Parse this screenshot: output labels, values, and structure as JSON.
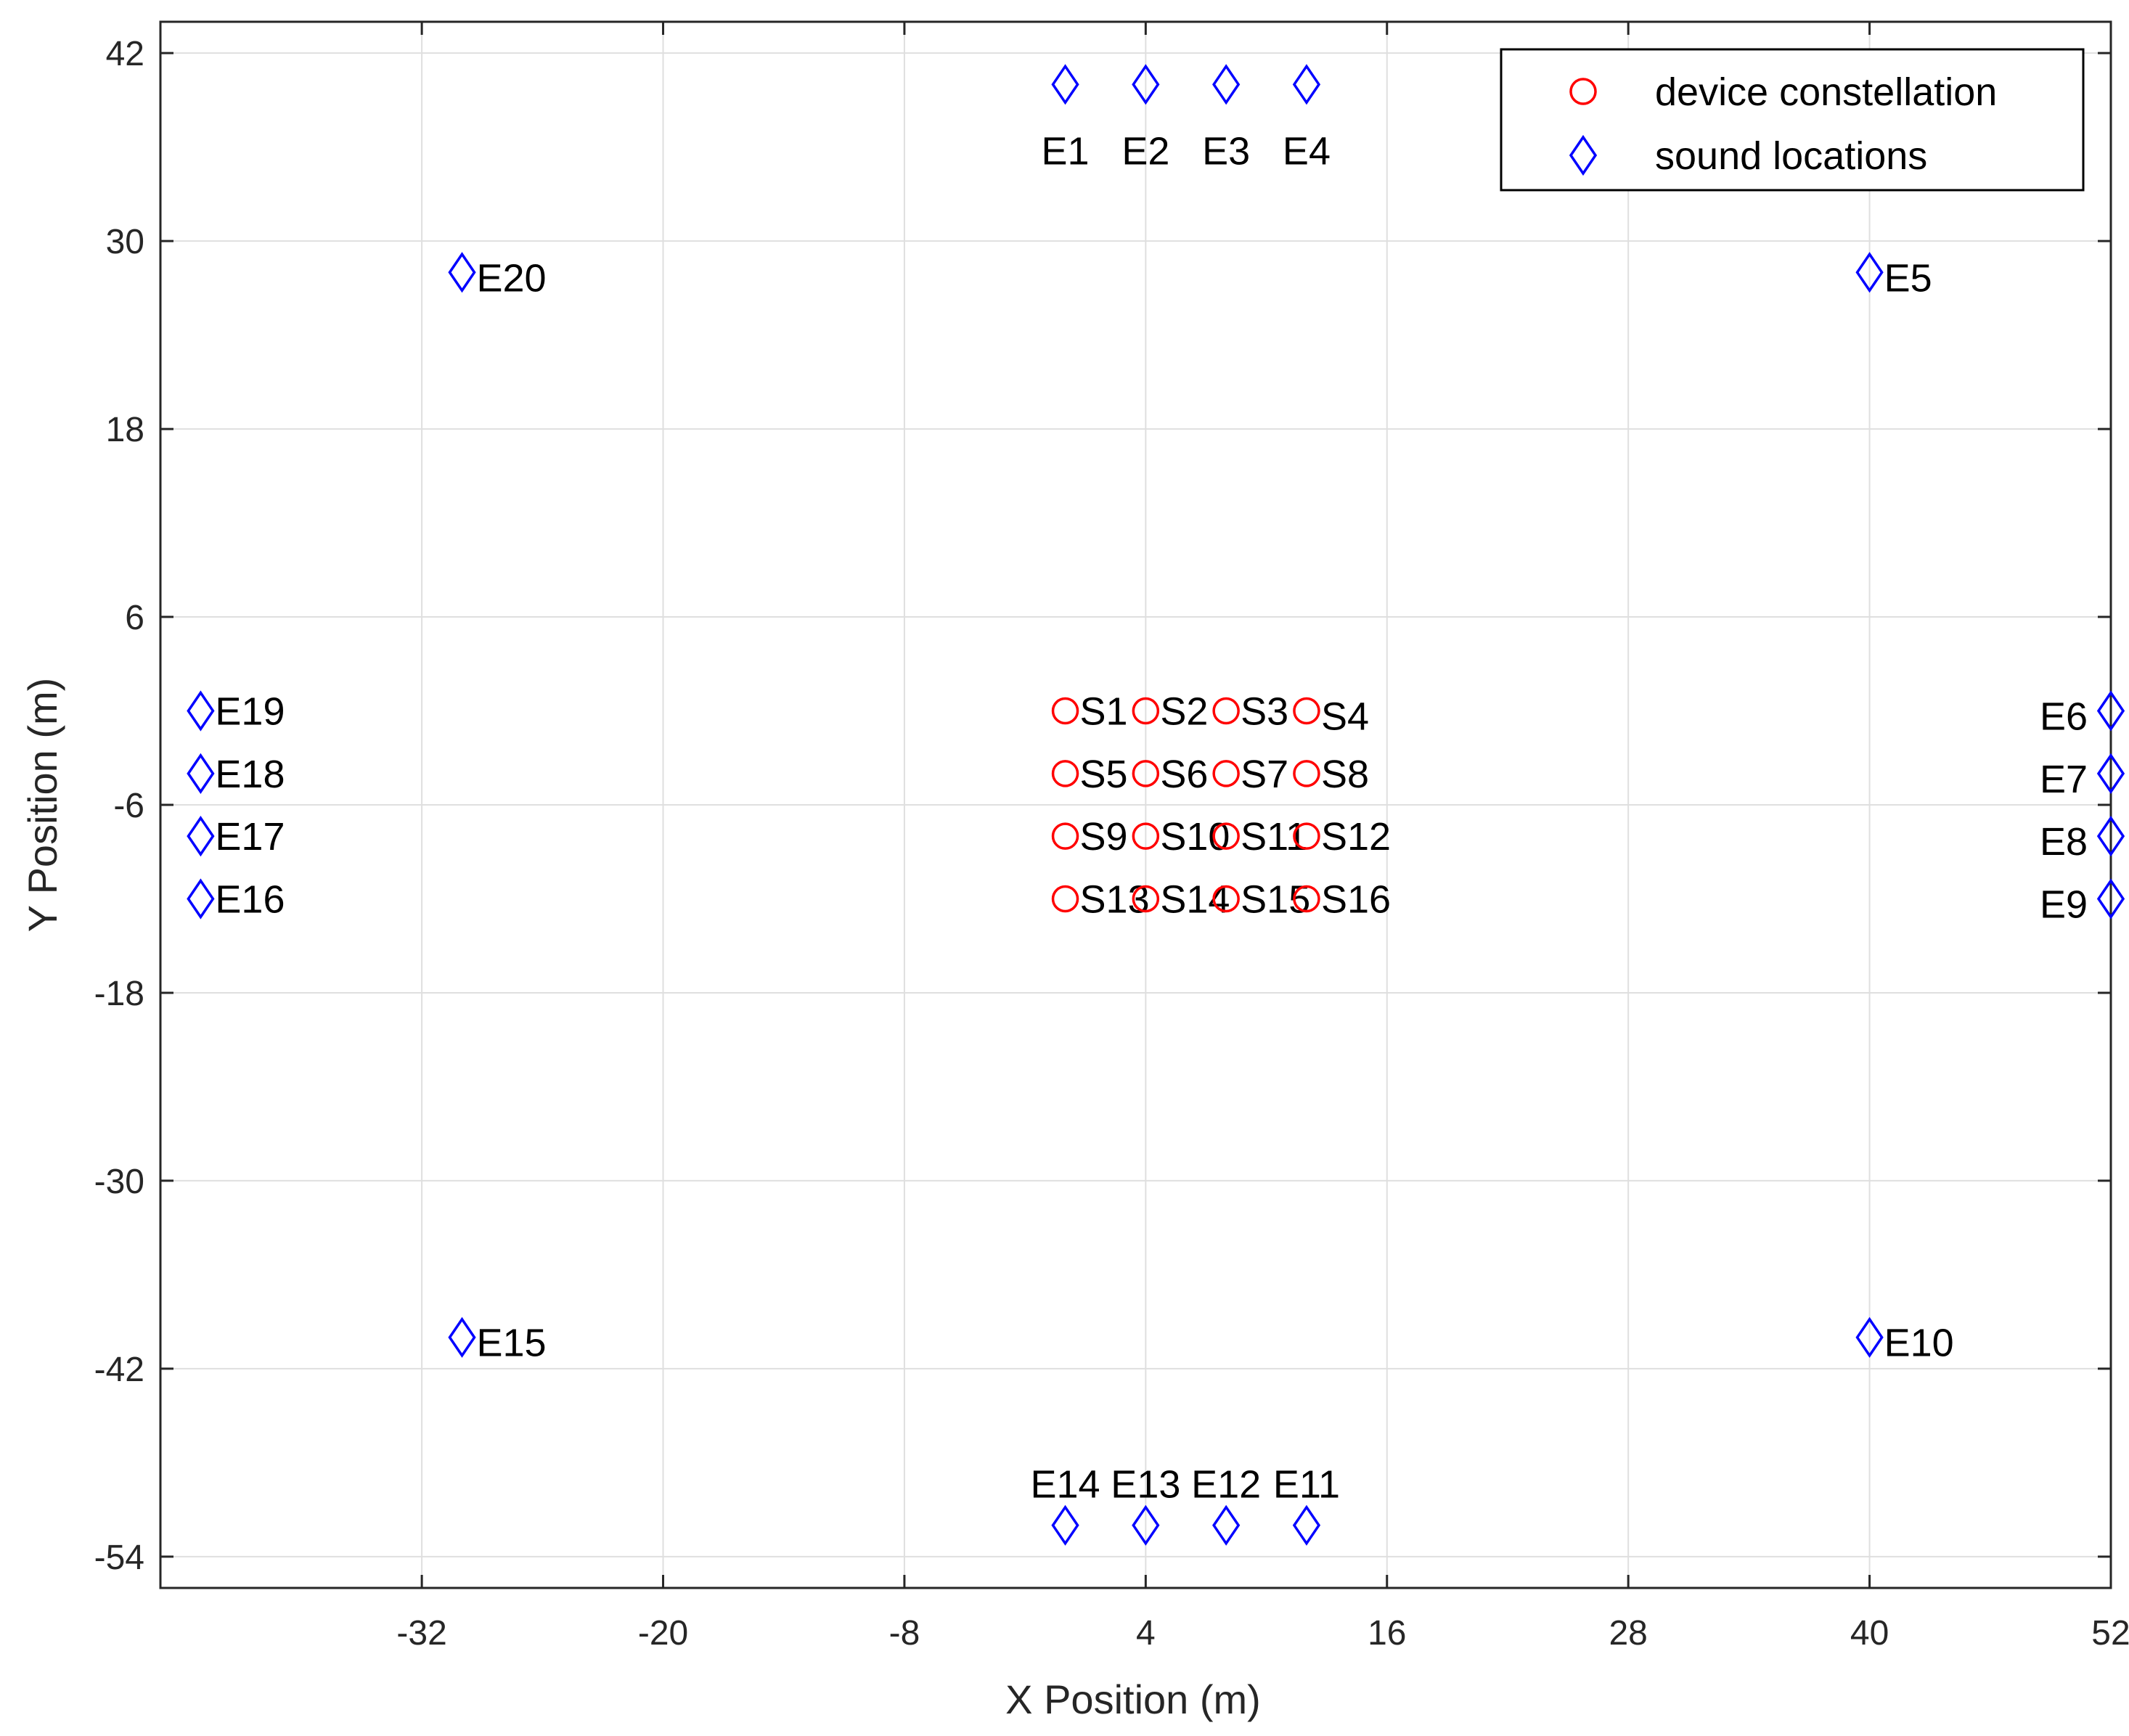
{
  "chart_data": {
    "type": "scatter",
    "title": "",
    "xlabel": "X Position (m)",
    "ylabel": "Y Position (m)",
    "xlim": [
      -45,
      52
    ],
    "ylim": [
      -56,
      44
    ],
    "xticks": [
      -32,
      -20,
      -8,
      4,
      16,
      28,
      40,
      52
    ],
    "yticks": [
      42,
      30,
      18,
      6,
      -6,
      -18,
      -30,
      -42,
      -54
    ],
    "grid": true,
    "legend_position": "top-right",
    "series": [
      {
        "name": "device constellation",
        "marker": "circle",
        "color": "#ff0000",
        "points": [
          {
            "label": "S1",
            "x": 0,
            "y": 0,
            "label_pos": "right"
          },
          {
            "label": "S2",
            "x": 4,
            "y": 0,
            "label_pos": "right"
          },
          {
            "label": "S3",
            "x": 8,
            "y": 0,
            "label_pos": "right"
          },
          {
            "label": "S4",
            "x": 12,
            "y": 0,
            "label_pos": "right-low"
          },
          {
            "label": "S5",
            "x": 0,
            "y": -4,
            "label_pos": "right"
          },
          {
            "label": "S6",
            "x": 4,
            "y": -4,
            "label_pos": "right"
          },
          {
            "label": "S7",
            "x": 8,
            "y": -4,
            "label_pos": "right"
          },
          {
            "label": "S8",
            "x": 12,
            "y": -4,
            "label_pos": "right"
          },
          {
            "label": "S9",
            "x": 0,
            "y": -8,
            "label_pos": "right"
          },
          {
            "label": "S10",
            "x": 4,
            "y": -8,
            "label_pos": "right"
          },
          {
            "label": "S11",
            "x": 8,
            "y": -8,
            "label_pos": "right"
          },
          {
            "label": "S12",
            "x": 12,
            "y": -8,
            "label_pos": "right"
          },
          {
            "label": "S13",
            "x": 0,
            "y": -12,
            "label_pos": "right"
          },
          {
            "label": "S14",
            "x": 4,
            "y": -12,
            "label_pos": "right"
          },
          {
            "label": "S15",
            "x": 8,
            "y": -12,
            "label_pos": "right"
          },
          {
            "label": "S16",
            "x": 12,
            "y": -12,
            "label_pos": "right"
          }
        ]
      },
      {
        "name": "sound locations",
        "marker": "diamond",
        "color": "#0000ff",
        "points": [
          {
            "label": "E1",
            "x": 0,
            "y": 40,
            "label_pos": "below"
          },
          {
            "label": "E2",
            "x": 4,
            "y": 40,
            "label_pos": "below"
          },
          {
            "label": "E3",
            "x": 8,
            "y": 40,
            "label_pos": "below"
          },
          {
            "label": "E4",
            "x": 12,
            "y": 40,
            "label_pos": "below"
          },
          {
            "label": "E5",
            "x": 40,
            "y": 28,
            "label_pos": "right-low"
          },
          {
            "label": "E6",
            "x": 52,
            "y": 0,
            "label_pos": "left-low"
          },
          {
            "label": "E7",
            "x": 52,
            "y": -4,
            "label_pos": "left-low"
          },
          {
            "label": "E8",
            "x": 52,
            "y": -8,
            "label_pos": "left-low"
          },
          {
            "label": "E9",
            "x": 52,
            "y": -12,
            "label_pos": "left-low"
          },
          {
            "label": "E10",
            "x": 40,
            "y": -40,
            "label_pos": "right-low"
          },
          {
            "label": "E11",
            "x": 12,
            "y": -52,
            "label_pos": "above"
          },
          {
            "label": "E12",
            "x": 8,
            "y": -52,
            "label_pos": "above"
          },
          {
            "label": "E13",
            "x": 4,
            "y": -52,
            "label_pos": "above"
          },
          {
            "label": "E14",
            "x": 0,
            "y": -52,
            "label_pos": "above"
          },
          {
            "label": "E15",
            "x": -30,
            "y": -40,
            "label_pos": "right-low"
          },
          {
            "label": "E16",
            "x": -43,
            "y": -12,
            "label_pos": "right"
          },
          {
            "label": "E17",
            "x": -43,
            "y": -8,
            "label_pos": "right"
          },
          {
            "label": "E18",
            "x": -43,
            "y": -4,
            "label_pos": "right"
          },
          {
            "label": "E19",
            "x": -43,
            "y": 0,
            "label_pos": "right"
          },
          {
            "label": "E20",
            "x": -30,
            "y": 28,
            "label_pos": "right-low"
          }
        ]
      }
    ]
  }
}
